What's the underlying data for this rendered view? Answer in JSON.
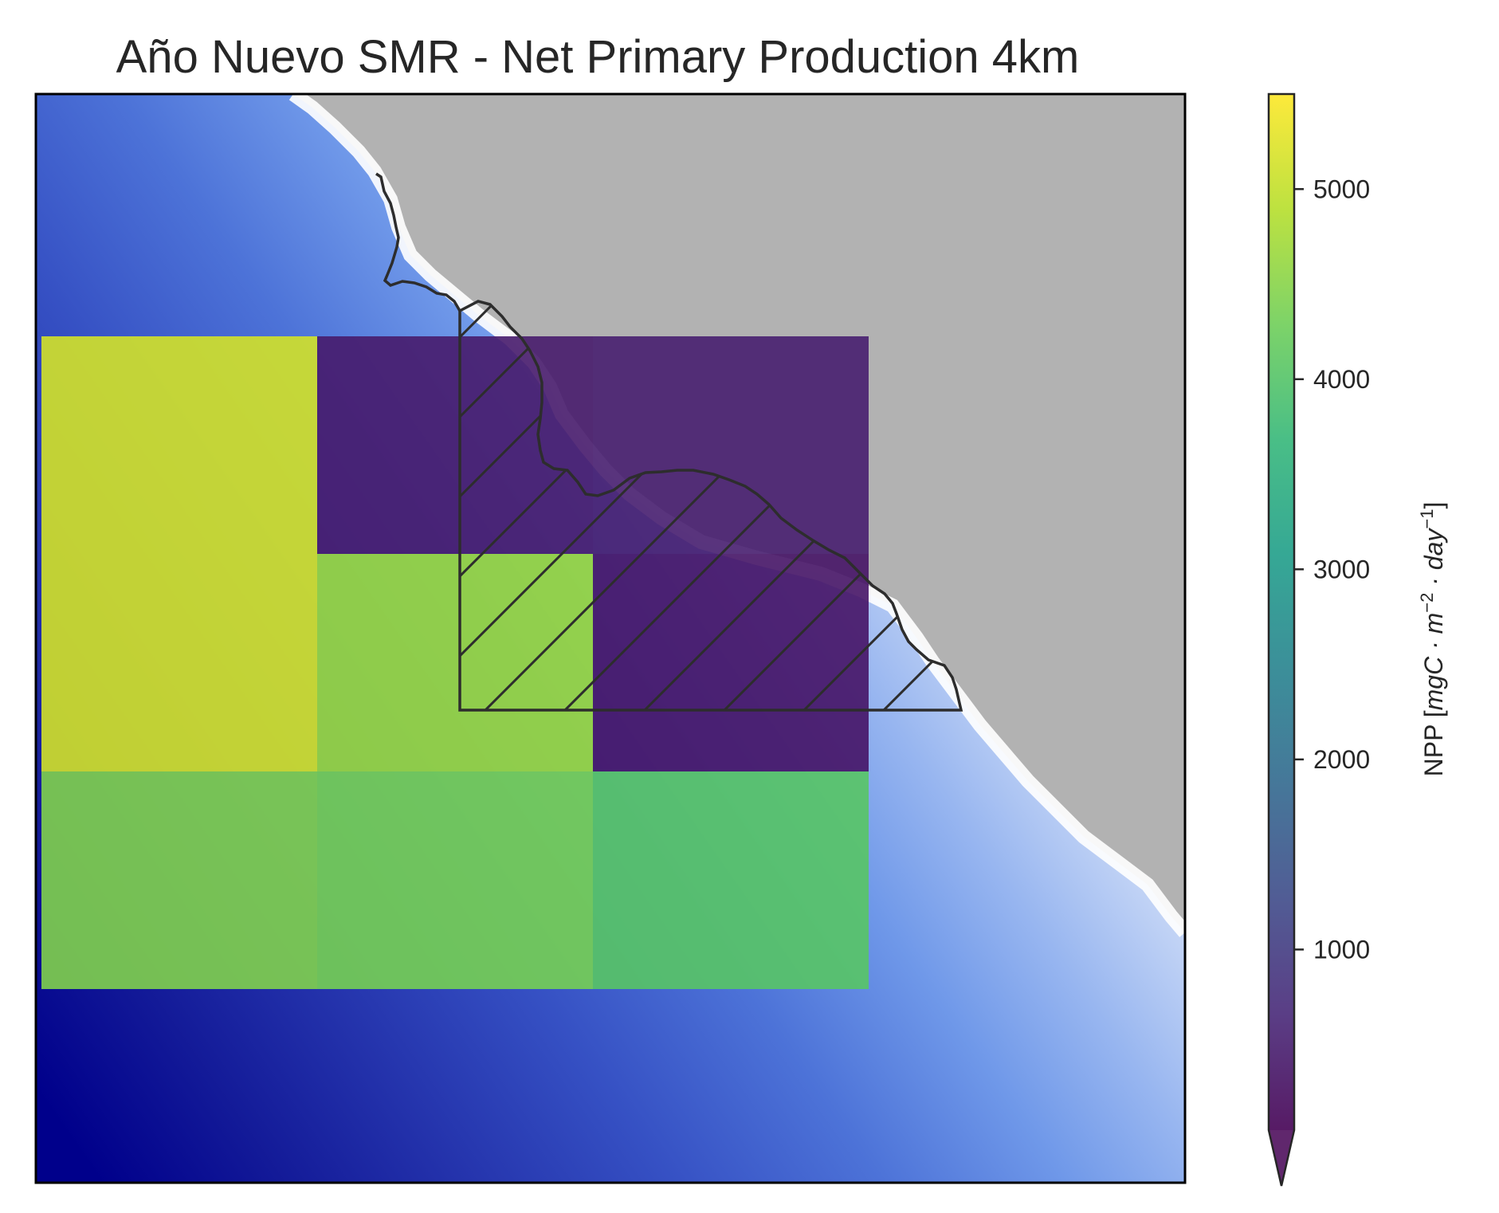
{
  "title": "Año Nuevo SMR - Net Primary Production 4km",
  "colorbar": {
    "label_prefix": "NPP [",
    "label_units": "mgC · m",
    "label_exp1": "−2",
    "label_mid": " · day",
    "label_exp2": "−1",
    "label_suffix": "]",
    "ticks": [
      "1000",
      "2000",
      "3000",
      "4000",
      "5000"
    ],
    "range": [
      50,
      5500
    ],
    "extend": "min",
    "colormap": "viridis"
  },
  "colors": {
    "land": "#b2b2b2",
    "frame": "#000000",
    "outline": "#2d2d2d",
    "bathymetry_deep": "#00008b",
    "bathymetry_shallow": "#ffffff"
  },
  "chart_data": {
    "type": "heatmap",
    "grid_rows": 3,
    "grid_cols": 3,
    "values": [
      [
        5150,
        450,
        500
      ],
      [
        5150,
        4650,
        350
      ],
      [
        4450,
        4350,
        4050
      ]
    ],
    "value_units": "mgC · m−2 · day−1",
    "reserve_outline": "hatched polygon over the central cells",
    "land": "grey"
  }
}
